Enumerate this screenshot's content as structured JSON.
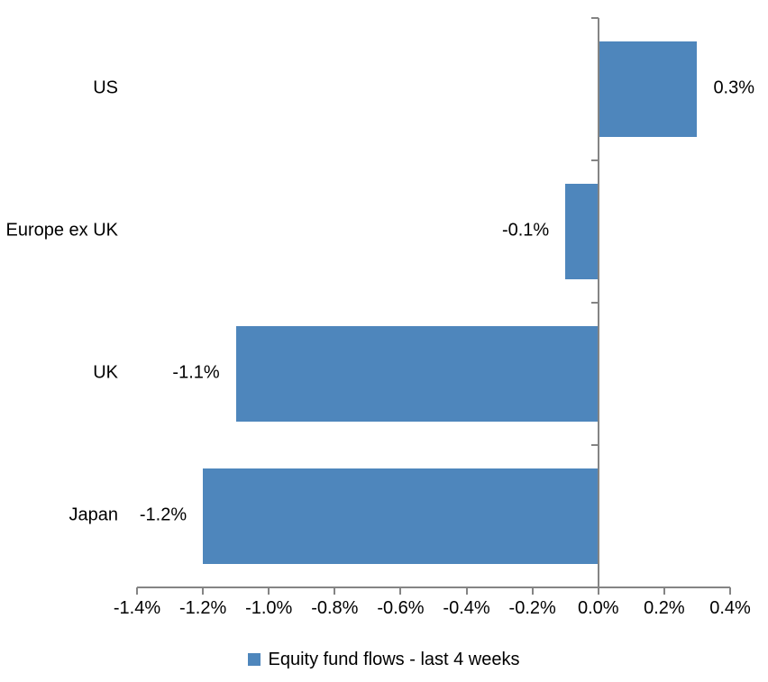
{
  "chart_data": {
    "type": "bar",
    "orientation": "horizontal",
    "title": "",
    "xlabel": "",
    "ylabel": "",
    "categories": [
      "US",
      "Europe ex UK",
      "UK",
      "Japan"
    ],
    "series": [
      {
        "name": "Equity fund flows - last 4 weeks",
        "values": [
          0.3,
          -0.1,
          -1.1,
          -1.2
        ],
        "value_labels": [
          "0.3%",
          "-0.1%",
          "-1.1%",
          "-1.2%"
        ]
      }
    ],
    "xlim": [
      -1.4,
      0.4
    ],
    "x_tick_step": 0.2,
    "x_tick_labels": [
      "-1.4%",
      "-1.2%",
      "-1.0%",
      "-0.8%",
      "-0.6%",
      "-0.4%",
      "-0.2%",
      "0.0%",
      "0.2%",
      "0.4%"
    ],
    "grid": false,
    "legend_position": "bottom",
    "colors": {
      "bar": "#4E86BC",
      "axis": "#848484",
      "text": "#000000",
      "background": "#FFFFFF"
    }
  }
}
